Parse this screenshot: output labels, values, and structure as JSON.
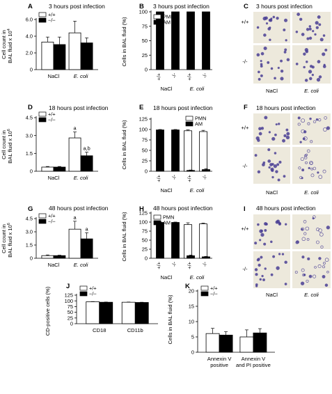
{
  "chart_data": [
    {
      "id": "A",
      "type": "bar",
      "panel_label": "A",
      "title": "3 hours post infection",
      "ylabel_lines": [
        "Cell count in",
        "BAL fluid x 10"
      ],
      "ylabel_exp": "4",
      "ylim": [
        0,
        6.0
      ],
      "yticks": [
        "0",
        "2.0",
        "4.0",
        "6.0"
      ],
      "ytick_values": [
        0,
        2.0,
        4.0,
        6.0
      ],
      "categories": [
        "NaCl",
        "E. coli"
      ],
      "legend": {
        "entries": [
          "+/+",
          "−/−"
        ],
        "position": "top-left"
      },
      "series": [
        {
          "name": "+/+",
          "color": "#ffffff",
          "values": [
            3.3,
            4.4
          ],
          "errors": [
            0.6,
            1.4
          ]
        },
        {
          "name": "−/−",
          "color": "#000000",
          "values": [
            3.0,
            3.2
          ],
          "errors": [
            0.9,
            0.6
          ]
        }
      ]
    },
    {
      "id": "B",
      "type": "bar",
      "panel_label": "B",
      "title": "3 hours post infection",
      "ylabel_lines": [
        "Cells in BAL fluid (%)"
      ],
      "ylim": [
        0,
        100
      ],
      "yticks": [
        "0",
        "25",
        "50",
        "75",
        "100"
      ],
      "ytick_values": [
        0,
        25,
        50,
        75,
        100
      ],
      "groups": [
        "NaCl",
        "E. coli"
      ],
      "subcategories": [
        "+/+",
        "-/-",
        "+/+",
        "-/-"
      ],
      "legend": {
        "entries": [
          "PMN",
          "AM"
        ],
        "position": "top-left"
      },
      "series": [
        {
          "name": "PMN",
          "color": "#ffffff",
          "values": [
            0,
            0,
            0,
            0
          ]
        },
        {
          "name": "AM",
          "color": "#000000",
          "values": [
            100,
            100,
            100,
            100
          ]
        }
      ]
    },
    {
      "id": "D",
      "type": "bar",
      "panel_label": "D",
      "title": "18 hours post infection",
      "ylabel_lines": [
        "Cell count in",
        "BAL fluid x 10"
      ],
      "ylabel_exp": "6",
      "ylim": [
        0,
        4.5
      ],
      "yticks": [
        "0",
        "1.5",
        "3.0",
        "4.5"
      ],
      "ytick_values": [
        0,
        1.5,
        3.0,
        4.5
      ],
      "categories": [
        "NaCl",
        "E. coli"
      ],
      "legend": {
        "entries": [
          "+/+",
          "−/−"
        ],
        "position": "top-left"
      },
      "annotations": [
        "",
        "",
        "a",
        "a,b"
      ],
      "series": [
        {
          "name": "+/+",
          "color": "#ffffff",
          "values": [
            0.35,
            2.8
          ],
          "errors": [
            0.05,
            0.5
          ]
        },
        {
          "name": "−/−",
          "color": "#000000",
          "values": [
            0.35,
            1.3
          ],
          "errors": [
            0.05,
            0.3
          ]
        }
      ]
    },
    {
      "id": "E",
      "type": "bar",
      "panel_label": "E",
      "title": "18 hours post infection",
      "ylabel_lines": [
        "Cells in BAL fluid (%)"
      ],
      "ylim": [
        0,
        125
      ],
      "yticks": [
        "0",
        "25",
        "50",
        "75",
        "100",
        "125"
      ],
      "ytick_values": [
        0,
        25,
        50,
        75,
        100,
        125
      ],
      "groups": [
        "NaCl",
        "E. coli"
      ],
      "subcategories": [
        "+/+",
        "-/-",
        "+/+",
        "-/-"
      ],
      "legend": {
        "entries": [
          "PMN",
          "AM"
        ],
        "position": "top-right"
      },
      "series": [
        {
          "name": "PMN",
          "color": "#ffffff",
          "values": [
            0,
            0,
            97,
            95
          ],
          "errors": [
            0,
            0,
            2,
            3
          ]
        },
        {
          "name": "AM",
          "color": "#000000",
          "values": [
            99,
            99,
            2,
            4
          ],
          "errors": [
            1,
            1,
            1,
            2
          ]
        }
      ]
    },
    {
      "id": "G",
      "type": "bar",
      "panel_label": "G",
      "title": "48 hours post infection",
      "ylabel_lines": [
        "Cell count in",
        "BAL fluid x 10"
      ],
      "ylabel_exp": "6",
      "ylim": [
        0,
        4.5
      ],
      "yticks": [
        "0",
        "1.5",
        "3.0",
        "4.5"
      ],
      "ytick_values": [
        0,
        1.5,
        3.0,
        4.5
      ],
      "categories": [
        "NaCl",
        "E. coli"
      ],
      "legend": {
        "entries": [
          "+/+",
          "−/−"
        ],
        "position": "top-left"
      },
      "annotations": [
        "",
        "",
        "a",
        "a"
      ],
      "series": [
        {
          "name": "+/+",
          "color": "#ffffff",
          "values": [
            0.3,
            3.3
          ],
          "errors": [
            0.08,
            0.9
          ]
        },
        {
          "name": "−/−",
          "color": "#000000",
          "values": [
            0.3,
            2.2
          ],
          "errors": [
            0.05,
            0.7
          ]
        }
      ]
    },
    {
      "id": "H",
      "type": "bar",
      "panel_label": "H",
      "title": "48 hours post infection",
      "ylabel_lines": [
        "Cells in BAL fluid (%)"
      ],
      "ylim": [
        0,
        125
      ],
      "yticks": [
        "0",
        "25",
        "50",
        "75",
        "100",
        "125"
      ],
      "ytick_values": [
        0,
        25,
        50,
        75,
        100,
        125
      ],
      "groups": [
        "NaCl",
        "E. coli"
      ],
      "subcategories": [
        "+/+",
        "-/-",
        "+/+",
        "-/-"
      ],
      "legend": {
        "entries": [
          "PMN",
          "AM"
        ],
        "position": "top-left"
      },
      "series": [
        {
          "name": "PMN",
          "color": "#ffffff",
          "values": [
            0,
            0,
            93,
            95
          ],
          "errors": [
            0,
            0,
            5,
            2
          ]
        },
        {
          "name": "AM",
          "color": "#000000",
          "values": [
            99,
            99,
            7,
            4
          ],
          "errors": [
            1,
            1,
            2,
            1
          ]
        }
      ]
    },
    {
      "id": "J",
      "type": "bar",
      "panel_label": "J",
      "title": "",
      "ylabel_lines": [
        "CD-positive cells (%)"
      ],
      "ylim": [
        0,
        125
      ],
      "yticks": [
        "0",
        "25",
        "50",
        "75",
        "100",
        "125"
      ],
      "ytick_values": [
        0,
        25,
        50,
        75,
        100,
        125
      ],
      "categories": [
        "CD18",
        "CD11b"
      ],
      "legend": {
        "entries": [
          "+/+",
          "−/−"
        ],
        "position": "top-left"
      },
      "series": [
        {
          "name": "+/+",
          "color": "#ffffff",
          "values": [
            96,
            94
          ],
          "errors": [
            1,
            1
          ]
        },
        {
          "name": "−/−",
          "color": "#000000",
          "values": [
            94,
            93
          ],
          "errors": [
            1,
            1
          ]
        }
      ]
    },
    {
      "id": "K",
      "type": "bar",
      "panel_label": "K",
      "title": "",
      "ylabel_lines": [
        "Cells in BAL fluid (%)"
      ],
      "ylim": [
        0,
        20
      ],
      "yticks": [
        "0",
        "5",
        "10",
        "15",
        "20"
      ],
      "ytick_values": [
        0,
        5,
        10,
        15,
        20
      ],
      "categories": [
        "Annexin V positive",
        "Annexin V and PI positive"
      ],
      "category_lines": [
        [
          "Annexin V",
          "positive"
        ],
        [
          "Annexin V",
          "and PI positive"
        ]
      ],
      "legend": {
        "entries": [
          "+/+",
          "−/−"
        ],
        "position": "top-left"
      },
      "series": [
        {
          "name": "+/+",
          "color": "#ffffff",
          "values": [
            6.1,
            5.0
          ],
          "errors": [
            1.7,
            2.3
          ]
        },
        {
          "name": "−/−",
          "color": "#000000",
          "values": [
            5.6,
            6.3
          ],
          "errors": [
            1.1,
            1.4
          ]
        }
      ]
    }
  ],
  "micrographs": [
    {
      "panel_label": "C",
      "title": "3 hours post infection",
      "row_labels": [
        "+/+",
        "-/-"
      ],
      "col_labels": [
        "NaCl",
        "E. coli"
      ]
    },
    {
      "panel_label": "F",
      "title": "18 hours post infection",
      "row_labels": [
        "+/+",
        "-/-"
      ],
      "col_labels": [
        "NaCl",
        "E. coli"
      ]
    },
    {
      "panel_label": "I",
      "title": "48 hours post infection",
      "row_labels": [
        "+/+",
        "-/-"
      ],
      "col_labels": [
        "NaCl",
        "E. coli"
      ]
    }
  ],
  "colors": {
    "bar_wt": "#ffffff",
    "bar_ko": "#000000",
    "micrograph_bg": "#ede9dc",
    "cell_stain": "#4a3f95"
  }
}
